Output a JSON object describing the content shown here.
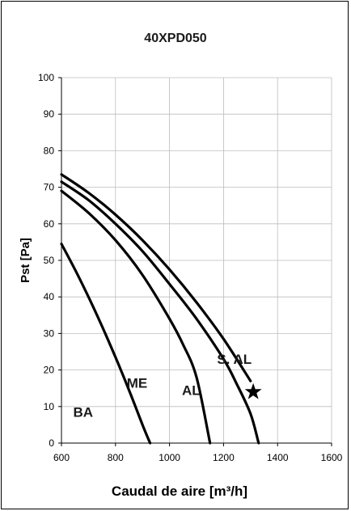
{
  "chart_data": {
    "type": "line",
    "title": "40XPD050",
    "xlabel": "Caudal de aire [m³/h]",
    "ylabel": "Pst [Pa]",
    "xlim": [
      600,
      1600
    ],
    "ylim": [
      0,
      100
    ],
    "x_ticks": [
      "600",
      "800",
      "1000",
      "1200",
      "1400",
      "1600"
    ],
    "y_ticks": [
      "0",
      "10",
      "20",
      "30",
      "40",
      "50",
      "60",
      "70",
      "80",
      "90",
      "100"
    ],
    "grid": true,
    "series": [
      {
        "name": "BA",
        "x": [
          600,
          650,
          700,
          750,
          800,
          850,
          900,
          928
        ],
        "y": [
          54.5,
          47.5,
          40,
          32,
          23.5,
          14.5,
          5,
          0
        ]
      },
      {
        "name": "ME",
        "x": [
          600,
          700,
          800,
          900,
          1000,
          1050,
          1100,
          1150
        ],
        "y": [
          69,
          63,
          55.5,
          46,
          34,
          27,
          18,
          0
        ]
      },
      {
        "name": "AL",
        "x": [
          600,
          700,
          800,
          900,
          1000,
          1100,
          1200,
          1250,
          1300,
          1330
        ],
        "y": [
          71.5,
          66.5,
          60,
          52.5,
          43.5,
          34,
          23,
          16,
          8,
          0
        ]
      },
      {
        "name": "S. AL",
        "x": [
          600,
          700,
          800,
          900,
          1000,
          1100,
          1200,
          1300
        ],
        "y": [
          73.5,
          68.5,
          62.5,
          55.5,
          47.5,
          38.5,
          28.5,
          17
        ]
      }
    ],
    "marker": {
      "shape": "star",
      "x": 1310,
      "y": 14
    },
    "annotations": [
      {
        "text": "BA",
        "x": 680,
        "y": 8.5
      },
      {
        "text": "ME",
        "x": 880,
        "y": 16.5
      },
      {
        "text": "AL",
        "x": 1080,
        "y": 14.5
      },
      {
        "text": "S. AL",
        "x": 1240,
        "y": 23
      }
    ]
  }
}
